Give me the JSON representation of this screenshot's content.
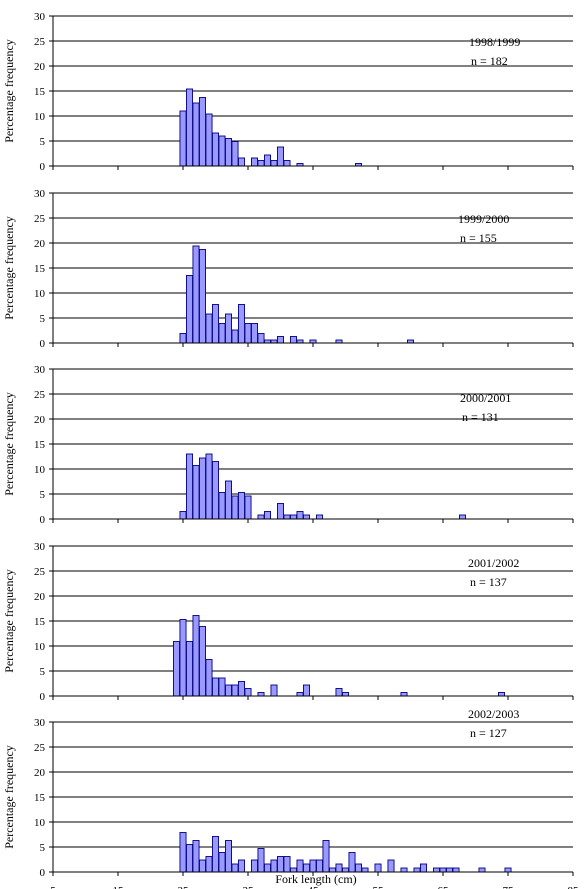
{
  "figure": {
    "xlabel": "Fork length (cm)",
    "ylabel": "Percentage frequency",
    "x_ticks": [
      5,
      15,
      25,
      35,
      45,
      55,
      65,
      75,
      85
    ],
    "y_ticks": [
      0,
      5,
      10,
      15,
      20,
      25,
      30
    ],
    "bar_fill": "#9999ff",
    "bar_stroke": "#000080"
  },
  "chart_data": [
    {
      "type": "bar",
      "season": "1998/1999",
      "n_label": "n = 182",
      "xlabel": "Fork length (cm)",
      "ylabel": "Percentage frequency",
      "xlim": [
        5,
        85
      ],
      "ylim": [
        0,
        30
      ],
      "grid": true,
      "x": [
        25,
        26,
        27,
        28,
        29,
        30,
        31,
        32,
        33,
        34,
        36,
        37,
        38,
        39,
        40,
        41,
        43,
        52
      ],
      "values": [
        11,
        15.4,
        12.6,
        13.7,
        10.4,
        6.6,
        6,
        5.5,
        4.9,
        1.6,
        1.6,
        1.1,
        2.2,
        1.1,
        3.8,
        1.1,
        0.5,
        0.5
      ]
    },
    {
      "type": "bar",
      "season": "1999/2000",
      "n_label": "n = 155",
      "xlabel": "Fork length (cm)",
      "ylabel": "Percentage frequency",
      "xlim": [
        5,
        85
      ],
      "ylim": [
        0,
        30
      ],
      "grid": true,
      "x": [
        25,
        26,
        27,
        28,
        29,
        30,
        31,
        32,
        33,
        34,
        35,
        36,
        37,
        38,
        39,
        40,
        42,
        43,
        45,
        49,
        60
      ],
      "values": [
        1.9,
        13.5,
        19.4,
        18.7,
        5.8,
        7.7,
        3.9,
        5.8,
        2.6,
        7.7,
        3.9,
        3.9,
        1.9,
        0.6,
        0.6,
        1.3,
        1.3,
        0.6,
        0.6,
        0.6,
        0.6
      ]
    },
    {
      "type": "bar",
      "season": "2000/2001",
      "n_label": "n = 131",
      "xlabel": "Fork length (cm)",
      "ylabel": "Percentage frequency",
      "xlim": [
        5,
        85
      ],
      "ylim": [
        0,
        30
      ],
      "grid": true,
      "x": [
        25,
        26,
        27,
        28,
        29,
        30,
        31,
        32,
        33,
        34,
        35,
        37,
        38,
        40,
        41,
        42,
        43,
        44,
        46,
        68
      ],
      "values": [
        1.5,
        13,
        10.7,
        12.2,
        13,
        11.5,
        5.3,
        7.6,
        4.6,
        5.3,
        4.6,
        0.8,
        1.5,
        3.1,
        0.8,
        0.8,
        1.5,
        0.8,
        0.8,
        0.8
      ]
    },
    {
      "type": "bar",
      "season": "2001/2002",
      "n_label": "n = 137",
      "xlabel": "Fork length (cm)",
      "ylabel": "Percentage frequency",
      "xlim": [
        5,
        85
      ],
      "ylim": [
        0,
        30
      ],
      "grid": true,
      "x": [
        24,
        25,
        26,
        27,
        28,
        29,
        30,
        31,
        32,
        33,
        34,
        35,
        37,
        39,
        43,
        44,
        49,
        50,
        59,
        74
      ],
      "values": [
        10.9,
        15.3,
        10.9,
        16.1,
        13.9,
        7.3,
        3.6,
        3.6,
        2.2,
        2.2,
        2.9,
        1.5,
        0.7,
        2.2,
        0.7,
        2.2,
        1.5,
        0.7,
        0.7,
        0.7
      ]
    },
    {
      "type": "bar",
      "season": "2002/2003",
      "n_label": "n = 127",
      "xlabel": "Fork length (cm)",
      "ylabel": "Percentage frequency",
      "xlim": [
        5,
        85
      ],
      "ylim": [
        0,
        30
      ],
      "grid": true,
      "x": [
        25,
        26,
        27,
        28,
        29,
        30,
        31,
        32,
        33,
        34,
        36,
        37,
        38,
        39,
        40,
        41,
        42,
        43,
        44,
        45,
        46,
        47,
        48,
        49,
        50,
        51,
        52,
        53,
        55,
        57,
        59,
        61,
        62,
        64,
        65,
        66,
        67,
        71,
        75
      ],
      "values": [
        7.9,
        5.5,
        6.3,
        2.4,
        3.1,
        7.1,
        3.9,
        6.3,
        1.6,
        2.4,
        2.4,
        4.7,
        1.6,
        2.4,
        3.1,
        3.1,
        0.8,
        2.4,
        1.6,
        2.4,
        2.4,
        6.3,
        0.8,
        1.6,
        0.8,
        3.9,
        1.6,
        0.8,
        1.6,
        2.4,
        0.8,
        0.8,
        1.6,
        0.8,
        0.8,
        0.8,
        0.8,
        0.8,
        0.8
      ]
    }
  ]
}
